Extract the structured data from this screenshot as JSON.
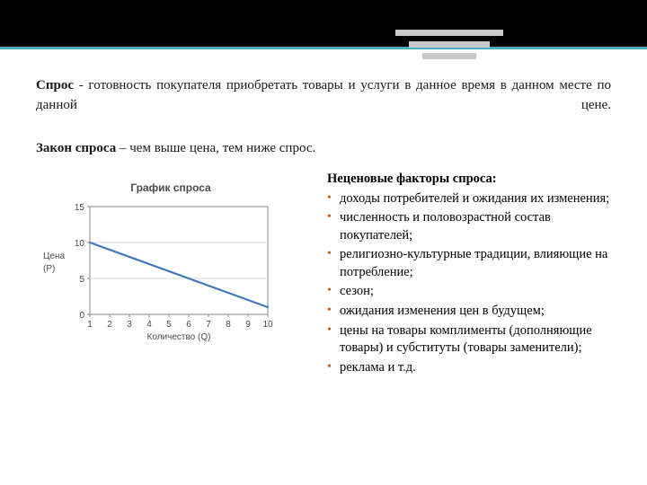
{
  "colors": {
    "top_band": "#000000",
    "teal_line": "#4fadc2",
    "header_bars": "#c9c9c9",
    "bullet": "#c55a11",
    "chart_border": "#888888",
    "grid": "#d9d9d9",
    "axis_text": "#4a4a4a",
    "plot_bg": "#ffffff",
    "line_color": "#3e79bf",
    "body_text": "#1a1a1a"
  },
  "header_bars": {
    "widths": [
      120,
      90,
      60
    ],
    "height": 7,
    "gap": 6,
    "indent_step": 15
  },
  "definition": {
    "term": "Спрос",
    "rest": " - готовность покупателя приобретать товары и услуги в данное время в данном месте по данной цене."
  },
  "law": {
    "term": "Закон спроса",
    "rest": " – чем выше цена, тем ниже спрос."
  },
  "factors": {
    "title": "Неценовые факторы спроса:",
    "items": [
      "доходы потребителей и ожидания их изменения;",
      "численность и половозрастной состав покупателей;",
      "религиозно-культурные традиции, влияющие на потребление;",
      "сезон;",
      "ожидания изменения цен в будущем;",
      "цены на товары комплименты (дополняющие товары) и субституты (товары заменители);",
      "реклама и т.д."
    ]
  },
  "chart": {
    "type": "line",
    "title": "График спроса",
    "x_label": "Количество (Q)",
    "y_label_line1": "Цена",
    "y_label_line2": "(P)",
    "plot_bg": "#ffffff",
    "border_color": "#888888",
    "grid_color": "#d9d9d9",
    "axis_text_color": "#4a4a4a",
    "line_color": "#3e79bf",
    "line_width": 2.2,
    "x_ticks": [
      1,
      2,
      3,
      4,
      5,
      6,
      7,
      8,
      9,
      10
    ],
    "y_ticks": [
      0,
      5,
      10,
      15
    ],
    "xlim": [
      1,
      10
    ],
    "ylim": [
      0,
      15
    ],
    "axis_fontsize": 10,
    "label_fontsize": 10,
    "title_fontsize": 12,
    "data_x": [
      1,
      10
    ],
    "data_y": [
      10,
      1
    ]
  }
}
